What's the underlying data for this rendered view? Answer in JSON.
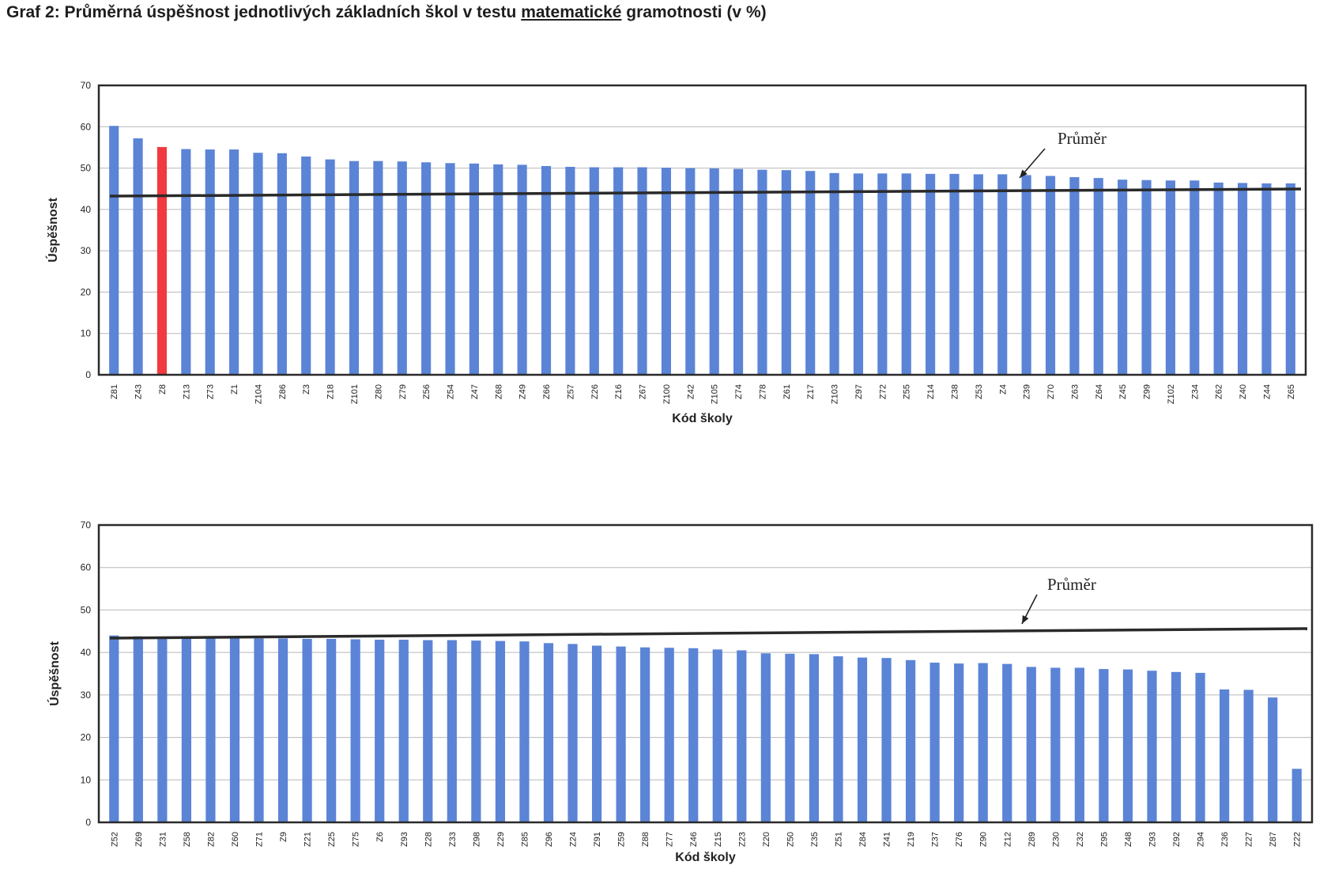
{
  "title": {
    "prefix": "Graf 2: Průměrná úspěšnost jednotlivých základních škol v testu ",
    "underlined": "matematické",
    "suffix": " gramotnosti (v %)"
  },
  "colors": {
    "bar": "#5b84d6",
    "highlight": "#f03a40",
    "average_line": "#2a2a2a"
  },
  "chart_data": [
    {
      "type": "bar",
      "ylabel": "Úspěšnost",
      "xlabel": "Kód školy",
      "ylim": [
        0,
        70
      ],
      "yticks": [
        0,
        10,
        20,
        30,
        40,
        50,
        60,
        70
      ],
      "grid": true,
      "annotation": "Průměr",
      "highlight": "Z8",
      "categories": [
        "Z81",
        "Z43",
        "Z8",
        "Z13",
        "Z73",
        "Z1",
        "Z104",
        "Z86",
        "Z3",
        "Z18",
        "Z101",
        "Z80",
        "Z79",
        "Z56",
        "Z54",
        "Z47",
        "Z68",
        "Z49",
        "Z66",
        "Z57",
        "Z26",
        "Z16",
        "Z67",
        "Z100",
        "Z42",
        "Z105",
        "Z74",
        "Z78",
        "Z61",
        "Z17",
        "Z103",
        "Z97",
        "Z72",
        "Z55",
        "Z14",
        "Z38",
        "Z53",
        "Z4",
        "Z39",
        "Z70",
        "Z63",
        "Z64",
        "Z45",
        "Z99",
        "Z102",
        "Z34",
        "Z62",
        "Z40",
        "Z44",
        "Z65"
      ],
      "values": [
        60.2,
        57.2,
        55.1,
        54.6,
        54.5,
        54.5,
        53.7,
        53.6,
        52.8,
        52.1,
        51.7,
        51.7,
        51.6,
        51.4,
        51.2,
        51.1,
        50.9,
        50.8,
        50.5,
        50.3,
        50.2,
        50.2,
        50.2,
        50.1,
        50.0,
        49.9,
        49.8,
        49.6,
        49.5,
        49.3,
        48.8,
        48.7,
        48.7,
        48.7,
        48.6,
        48.6,
        48.5,
        48.5,
        48.3,
        48.1,
        47.8,
        47.6,
        47.2,
        47.1,
        47.0,
        47.0,
        46.5,
        46.4,
        46.3,
        46.3
      ]
    },
    {
      "type": "bar",
      "ylabel": "Úspěšnost",
      "xlabel": "Kód školy",
      "ylim": [
        0,
        70
      ],
      "yticks": [
        0,
        10,
        20,
        30,
        40,
        50,
        60,
        70
      ],
      "grid": true,
      "annotation": "Průměr",
      "categories": [
        "Z52",
        "Z69",
        "Z31",
        "Z58",
        "Z82",
        "Z60",
        "Z71",
        "Z9",
        "Z21",
        "Z25",
        "Z75",
        "Z6",
        "Z93",
        "Z28",
        "Z33",
        "Z98",
        "Z29",
        "Z85",
        "Z96",
        "Z24",
        "Z91",
        "Z59",
        "Z88",
        "Z77",
        "Z46",
        "Z15",
        "Z23",
        "Z20",
        "Z50",
        "Z35",
        "Z51",
        "Z84",
        "Z41",
        "Z19",
        "Z37",
        "Z76",
        "Z90",
        "Z12",
        "Z89",
        "Z30",
        "Z32",
        "Z95",
        "Z48",
        "Z93",
        "Z92",
        "Z94",
        "Z36",
        "Z27",
        "Z87",
        "Z22"
      ],
      "values": [
        44.0,
        43.8,
        43.7,
        43.6,
        43.5,
        43.5,
        43.3,
        43.3,
        43.2,
        43.2,
        43.1,
        43.0,
        43.0,
        42.9,
        42.9,
        42.8,
        42.7,
        42.6,
        42.2,
        42.0,
        41.6,
        41.4,
        41.2,
        41.1,
        41.0,
        40.7,
        40.5,
        39.8,
        39.7,
        39.6,
        39.1,
        38.8,
        38.7,
        38.2,
        37.6,
        37.4,
        37.5,
        37.3,
        36.6,
        36.4,
        36.4,
        36.1,
        36.0,
        35.7,
        35.4,
        35.2,
        31.3,
        31.2,
        29.4,
        12.6
      ]
    }
  ]
}
